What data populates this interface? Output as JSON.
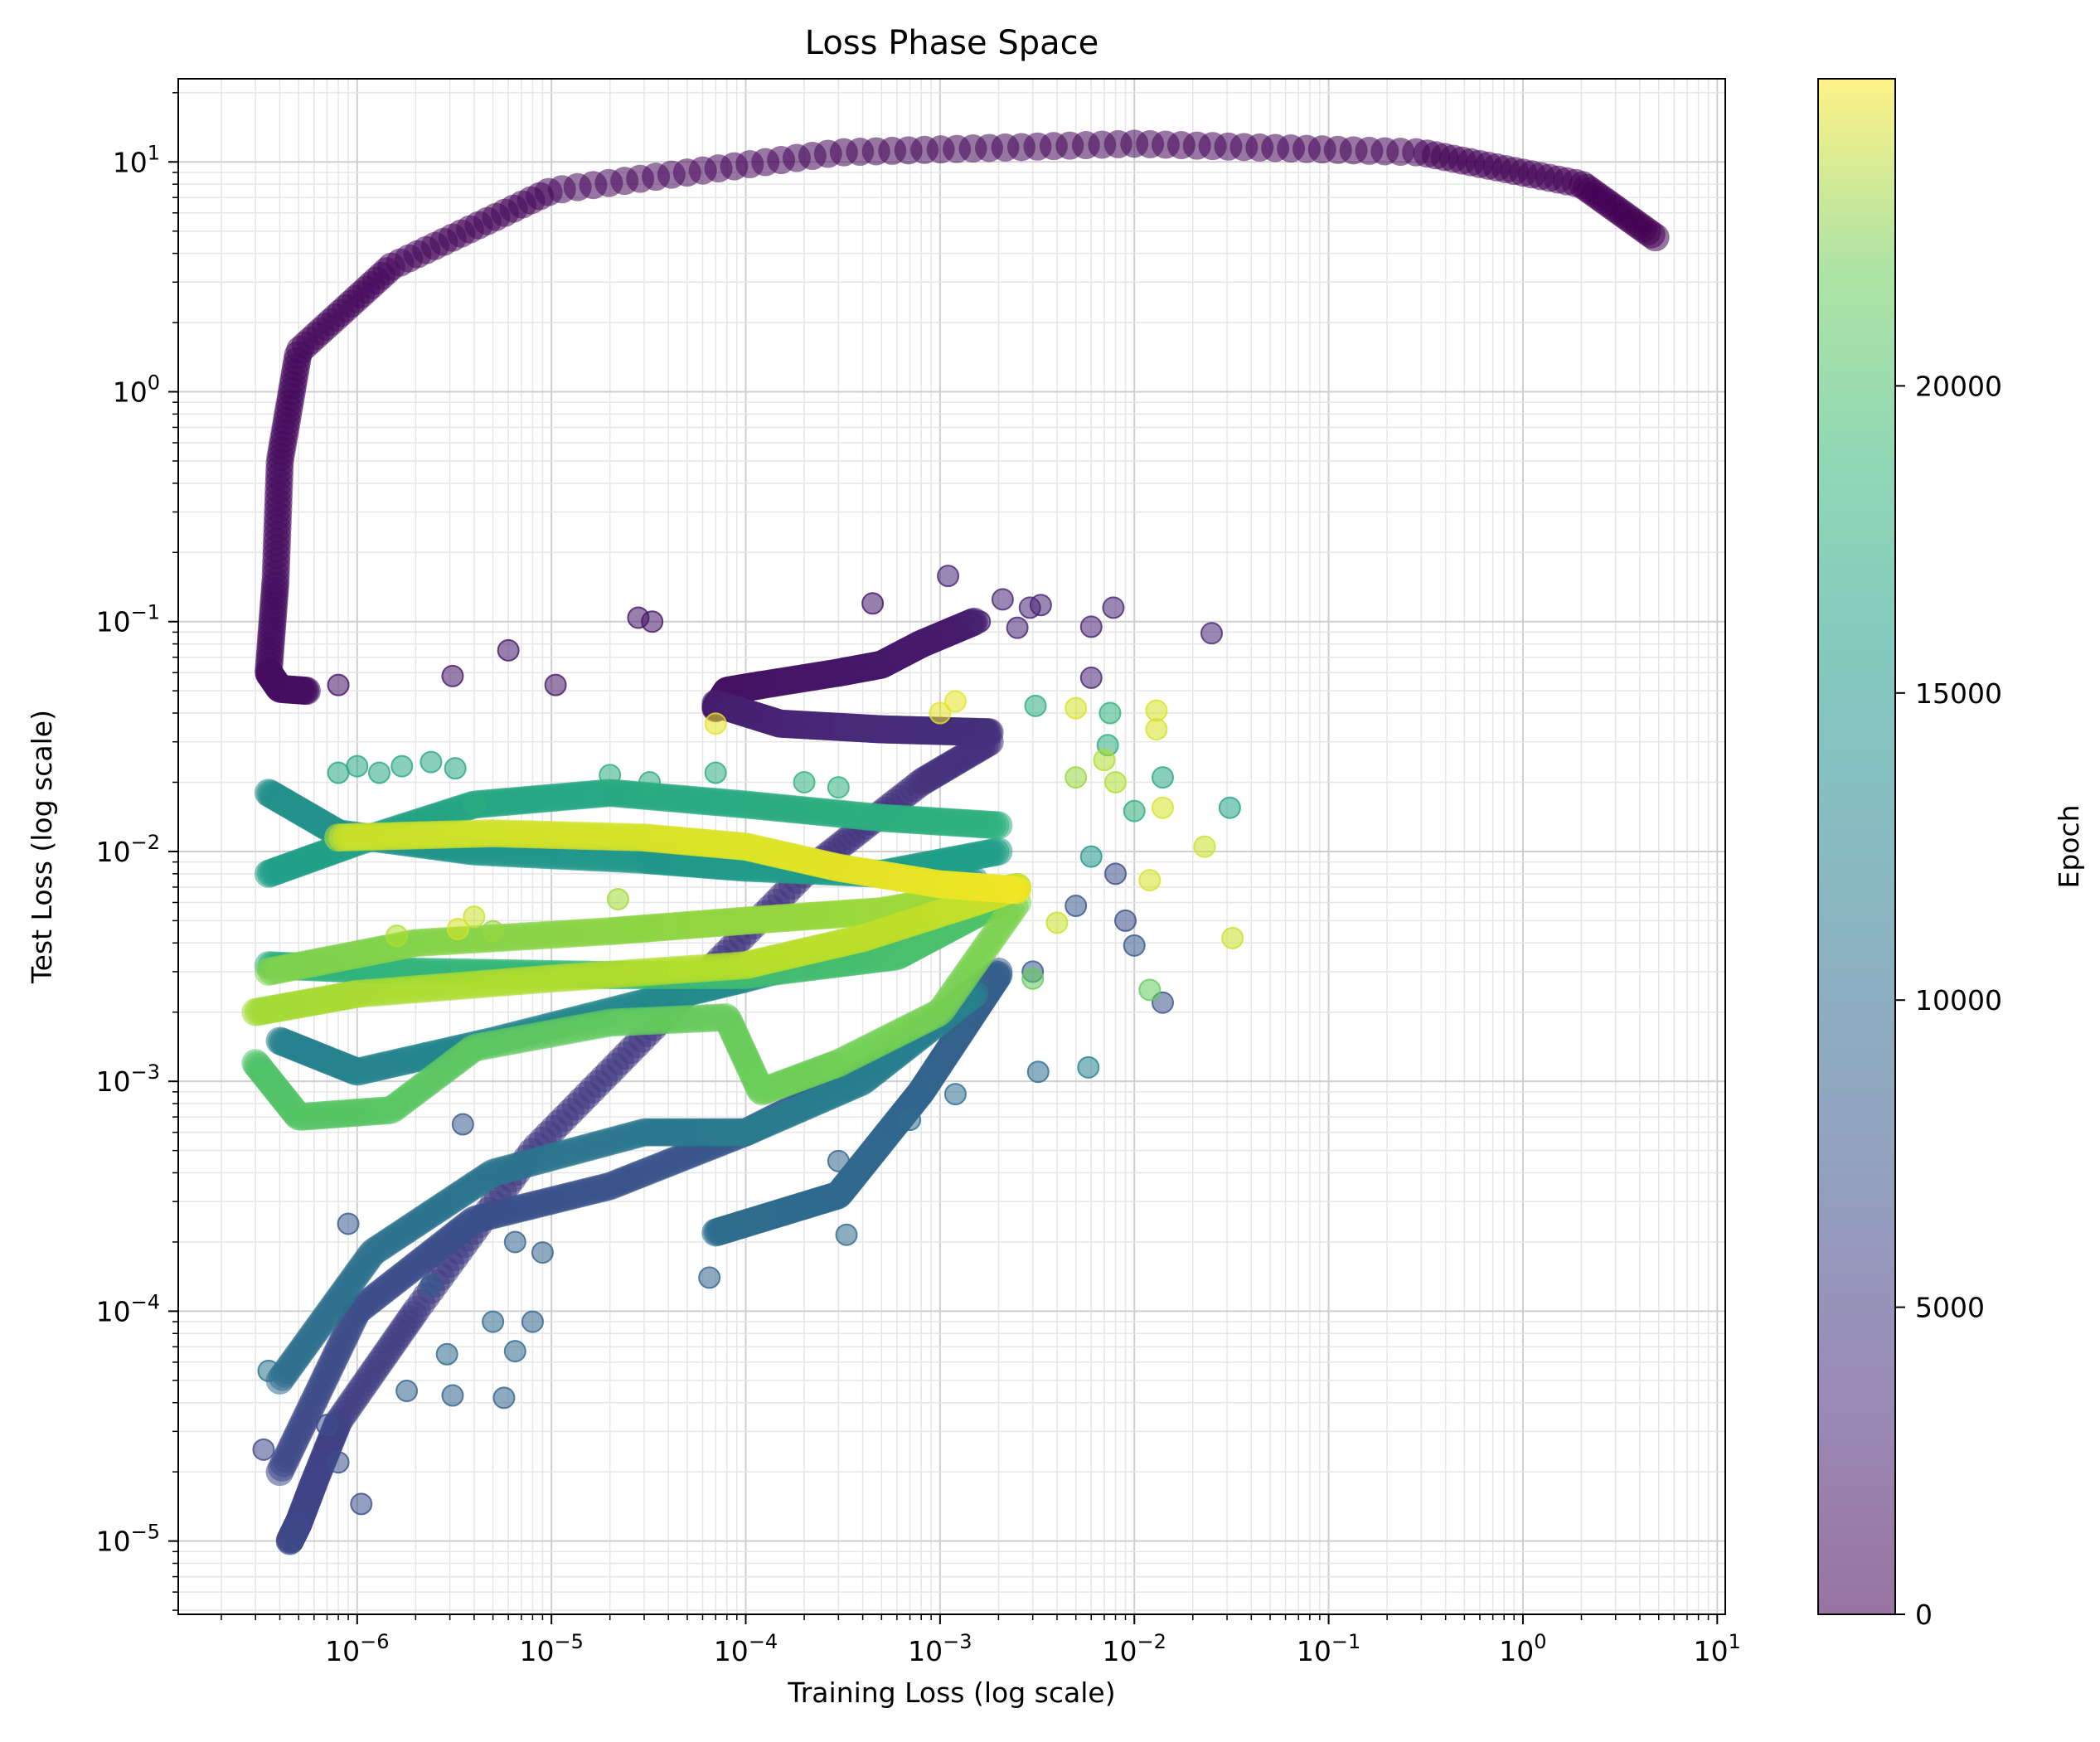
{
  "chart_data": {
    "type": "scatter",
    "title": "Loss Phase Space",
    "xlabel": "Training Loss (log scale)",
    "ylabel": "Test Loss (log scale)",
    "xscale": "log",
    "yscale": "log",
    "xlim": [
      1.2e-07,
      11
    ],
    "ylim": [
      4.8e-06,
      23
    ],
    "grid": true,
    "colormap": "viridis",
    "colorbar": {
      "label": "Epoch",
      "range": [
        0,
        25000
      ],
      "ticks": [
        0,
        5000,
        10000,
        15000,
        20000
      ]
    },
    "x_ticks": [
      "10^-6",
      "10^-5",
      "10^-4",
      "10^-3",
      "10^-2",
      "10^-1",
      "10^0",
      "10^1"
    ],
    "y_ticks": [
      "10^-5",
      "10^-4",
      "10^-3",
      "10^-2",
      "10^-1",
      "10^0",
      "10^1"
    ],
    "trajectories": [
      {
        "epoch_range": [
          0,
          1000
        ],
        "points": [
          [
            4.8,
            4.7
          ],
          [
            2.0,
            8.0
          ],
          [
            0.3,
            11.0
          ],
          [
            0.01,
            12.0
          ],
          [
            0.0003,
            11.0
          ],
          [
            1e-05,
            7.5
          ],
          [
            1.5e-06,
            3.5
          ],
          [
            5e-07,
            1.5
          ],
          [
            4e-07,
            0.5
          ],
          [
            3.8e-07,
            0.15
          ],
          [
            3.5e-07,
            0.06
          ],
          [
            4e-07,
            0.051
          ],
          [
            5.5e-07,
            0.05
          ]
        ]
      },
      {
        "epoch_range": [
          1000,
          2000
        ],
        "points": [
          [
            7e-05,
            0.042
          ],
          [
            8e-05,
            0.05
          ],
          [
            0.00012,
            0.053
          ],
          [
            0.0003,
            0.06
          ],
          [
            0.0005,
            0.065
          ],
          [
            0.0008,
            0.08
          ],
          [
            0.0015,
            0.1
          ]
        ]
      },
      {
        "epoch_range": [
          2000,
          3500
        ],
        "points": [
          [
            7e-05,
            0.044
          ],
          [
            0.00015,
            0.036
          ],
          [
            0.0005,
            0.034
          ],
          [
            0.0018,
            0.033
          ]
        ]
      },
      {
        "epoch_range": [
          3500,
          5500
        ],
        "points": [
          [
            0.0018,
            0.03
          ],
          [
            0.0008,
            0.02
          ],
          [
            0.0002,
            0.008
          ],
          [
            4e-05,
            0.002
          ],
          [
            8e-06,
            0.0005
          ],
          [
            2e-06,
            0.0001
          ],
          [
            8e-07,
            3.3e-05
          ],
          [
            6e-07,
            1.8e-05
          ],
          [
            5e-07,
            1.2e-05
          ],
          [
            4.5e-07,
            1e-05
          ]
        ]
      },
      {
        "epoch_range": [
          5500,
          7500
        ],
        "points": [
          [
            4e-07,
            2e-05
          ],
          [
            1e-06,
            0.0001
          ],
          [
            4e-06,
            0.00025
          ],
          [
            2e-05,
            0.00035
          ],
          [
            0.0001,
            0.0006
          ],
          [
            0.0005,
            0.0012
          ],
          [
            0.002,
            0.003
          ]
        ]
      },
      {
        "epoch_range": [
          7500,
          9000
        ],
        "points": [
          [
            0.002,
            0.0029
          ],
          [
            0.0008,
            0.0009
          ],
          [
            0.0003,
            0.00032
          ],
          [
            7e-05,
            0.00022
          ]
        ]
      },
      {
        "epoch_range": [
          9000,
          11000
        ],
        "points": [
          [
            4e-07,
            5e-05
          ],
          [
            1.2e-06,
            0.00018
          ],
          [
            5e-06,
            0.0004
          ],
          [
            3e-05,
            0.0006
          ],
          [
            0.0001,
            0.0006
          ],
          [
            0.0004,
            0.001
          ],
          [
            0.0015,
            0.0024
          ]
        ]
      },
      {
        "epoch_range": [
          11000,
          12500
        ],
        "points": [
          [
            4e-07,
            0.0015
          ],
          [
            1e-06,
            0.0011
          ],
          [
            5e-06,
            0.0015
          ],
          [
            3e-05,
            0.0022
          ],
          [
            0.0001,
            0.0028
          ],
          [
            0.0005,
            0.004
          ],
          [
            0.0015,
            0.0075
          ]
        ]
      },
      {
        "epoch_range": [
          12500,
          14000
        ],
        "points": [
          [
            3.5e-07,
            0.018
          ],
          [
            8e-07,
            0.012
          ],
          [
            4e-06,
            0.01
          ],
          [
            3e-05,
            0.0092
          ],
          [
            0.0001,
            0.0085
          ],
          [
            0.0005,
            0.008
          ],
          [
            0.002,
            0.01
          ]
        ]
      },
      {
        "epoch_range": [
          14000,
          16000
        ],
        "points": [
          [
            3.5e-07,
            0.008
          ],
          [
            1e-06,
            0.011
          ],
          [
            4e-06,
            0.016
          ],
          [
            2e-05,
            0.018
          ],
          [
            0.0001,
            0.016
          ],
          [
            0.0005,
            0.014
          ],
          [
            0.002,
            0.013
          ]
        ]
      },
      {
        "epoch_range": [
          16000,
          18000
        ],
        "points": [
          [
            3.5e-07,
            0.0032
          ],
          [
            2e-06,
            0.003
          ],
          [
            2e-05,
            0.0029
          ],
          [
            0.0001,
            0.0029
          ],
          [
            0.0006,
            0.0035
          ],
          [
            0.002,
            0.006
          ]
        ]
      },
      {
        "epoch_range": [
          18000,
          20000
        ],
        "points": [
          [
            3e-07,
            0.0012
          ],
          [
            5e-07,
            0.0007
          ],
          [
            1.5e-06,
            0.00075
          ],
          [
            4e-06,
            0.0014
          ],
          [
            2e-05,
            0.0018
          ],
          [
            8e-05,
            0.0019
          ],
          [
            0.00012,
            0.0009
          ],
          [
            0.0003,
            0.0012
          ],
          [
            0.001,
            0.002
          ],
          [
            0.0025,
            0.006
          ]
        ]
      },
      {
        "epoch_range": [
          20000,
          21500
        ],
        "points": [
          [
            3.5e-07,
            0.003
          ],
          [
            2e-06,
            0.004
          ],
          [
            2e-05,
            0.0045
          ],
          [
            0.0001,
            0.005
          ],
          [
            0.0005,
            0.0055
          ],
          [
            0.0025,
            0.007
          ]
        ]
      },
      {
        "epoch_range": [
          21500,
          23000
        ],
        "points": [
          [
            3e-07,
            0.002
          ],
          [
            1e-06,
            0.0024
          ],
          [
            1e-05,
            0.0028
          ],
          [
            0.0001,
            0.0032
          ],
          [
            0.0004,
            0.0042
          ],
          [
            0.0015,
            0.006
          ],
          [
            0.0025,
            0.007
          ]
        ]
      },
      {
        "epoch_range": [
          23000,
          24500
        ],
        "points": [
          [
            8e-07,
            0.0115
          ],
          [
            5e-06,
            0.012
          ],
          [
            3e-05,
            0.0115
          ],
          [
            0.0001,
            0.0105
          ],
          [
            0.0003,
            0.0085
          ],
          [
            0.001,
            0.0072
          ],
          [
            0.0025,
            0.0068
          ]
        ]
      }
    ],
    "scatter_outliers": [
      {
        "x": 3.1e-06,
        "y": 0.058,
        "epoch": 1500
      },
      {
        "x": 6e-06,
        "y": 0.075,
        "epoch": 1500
      },
      {
        "x": 1.05e-05,
        "y": 0.053,
        "epoch": 1500
      },
      {
        "x": 2.8e-05,
        "y": 0.104,
        "epoch": 1500
      },
      {
        "x": 3.3e-05,
        "y": 0.1,
        "epoch": 1500
      },
      {
        "x": 0.00045,
        "y": 0.12,
        "epoch": 1500
      },
      {
        "x": 0.0011,
        "y": 0.158,
        "epoch": 2500
      },
      {
        "x": 0.0021,
        "y": 0.125,
        "epoch": 2500
      },
      {
        "x": 0.0029,
        "y": 0.115,
        "epoch": 2500
      },
      {
        "x": 0.0033,
        "y": 0.118,
        "epoch": 2500
      },
      {
        "x": 0.0025,
        "y": 0.094,
        "epoch": 2500
      },
      {
        "x": 0.006,
        "y": 0.095,
        "epoch": 2500
      },
      {
        "x": 0.0078,
        "y": 0.115,
        "epoch": 2500
      },
      {
        "x": 0.025,
        "y": 0.089,
        "epoch": 2500
      },
      {
        "x": 0.006,
        "y": 0.057,
        "epoch": 2500
      },
      {
        "x": 0.0016,
        "y": 0.1,
        "epoch": 2500
      },
      {
        "x": 8e-07,
        "y": 0.053,
        "epoch": 1200
      },
      {
        "x": 0.0007,
        "y": 0.00068,
        "epoch": 9000
      },
      {
        "x": 0.0012,
        "y": 0.00088,
        "epoch": 9000
      },
      {
        "x": 0.0032,
        "y": 0.0011,
        "epoch": 9000
      },
      {
        "x": 0.0058,
        "y": 0.00115,
        "epoch": 11000
      },
      {
        "x": 0.014,
        "y": 0.0022,
        "epoch": 6500
      },
      {
        "x": 0.01,
        "y": 0.0039,
        "epoch": 7000
      },
      {
        "x": 0.003,
        "y": 0.003,
        "epoch": 7000
      },
      {
        "x": 0.005,
        "y": 0.0058,
        "epoch": 7000
      },
      {
        "x": 0.008,
        "y": 0.008,
        "epoch": 6000
      },
      {
        "x": 0.009,
        "y": 0.005,
        "epoch": 6000
      },
      {
        "x": 0.0003,
        "y": 0.00045,
        "epoch": 8000
      },
      {
        "x": 0.00033,
        "y": 0.000215,
        "epoch": 8500
      },
      {
        "x": 6.5e-05,
        "y": 0.00014,
        "epoch": 8000
      },
      {
        "x": 3.5e-06,
        "y": 0.00065,
        "epoch": 7000
      },
      {
        "x": 6.5e-06,
        "y": 0.0002,
        "epoch": 8000
      },
      {
        "x": 9e-06,
        "y": 0.00018,
        "epoch": 8000
      },
      {
        "x": 5e-06,
        "y": 9e-05,
        "epoch": 8500
      },
      {
        "x": 8e-06,
        "y": 9e-05,
        "epoch": 8000
      },
      {
        "x": 2.9e-06,
        "y": 6.5e-05,
        "epoch": 8500
      },
      {
        "x": 6.5e-06,
        "y": 6.7e-05,
        "epoch": 8500
      },
      {
        "x": 1.8e-06,
        "y": 4.5e-05,
        "epoch": 8000
      },
      {
        "x": 3.1e-06,
        "y": 4.3e-05,
        "epoch": 8000
      },
      {
        "x": 5.7e-06,
        "y": 4.2e-05,
        "epoch": 8000
      },
      {
        "x": 1.05e-06,
        "y": 1.45e-05,
        "epoch": 6000
      },
      {
        "x": 8e-07,
        "y": 2.2e-05,
        "epoch": 6000
      },
      {
        "x": 7e-07,
        "y": 3.2e-05,
        "epoch": 6000
      },
      {
        "x": 0.0031,
        "y": 0.043,
        "epoch": 15500
      },
      {
        "x": 0.0075,
        "y": 0.04,
        "epoch": 16000
      },
      {
        "x": 0.0073,
        "y": 0.029,
        "epoch": 15500
      },
      {
        "x": 0.014,
        "y": 0.021,
        "epoch": 15000
      },
      {
        "x": 0.031,
        "y": 0.0155,
        "epoch": 14500
      },
      {
        "x": 0.01,
        "y": 0.015,
        "epoch": 15500
      },
      {
        "x": 0.006,
        "y": 0.0095,
        "epoch": 13000
      },
      {
        "x": 0.012,
        "y": 0.0025,
        "epoch": 19000
      },
      {
        "x": 0.003,
        "y": 0.0028,
        "epoch": 19000
      },
      {
        "x": 0.005,
        "y": 0.021,
        "epoch": 21000
      },
      {
        "x": 0.007,
        "y": 0.025,
        "epoch": 22000
      },
      {
        "x": 0.008,
        "y": 0.02,
        "epoch": 22000
      },
      {
        "x": 0.005,
        "y": 0.042,
        "epoch": 23500
      },
      {
        "x": 0.013,
        "y": 0.041,
        "epoch": 23500
      },
      {
        "x": 0.013,
        "y": 0.034,
        "epoch": 23500
      },
      {
        "x": 0.014,
        "y": 0.0155,
        "epoch": 23500
      },
      {
        "x": 0.012,
        "y": 0.0075,
        "epoch": 23500
      },
      {
        "x": 0.023,
        "y": 0.0105,
        "epoch": 23000
      },
      {
        "x": 0.032,
        "y": 0.0042,
        "epoch": 23000
      },
      {
        "x": 0.004,
        "y": 0.0049,
        "epoch": 23000
      },
      {
        "x": 3.3e-06,
        "y": 0.0046,
        "epoch": 23500
      },
      {
        "x": 4e-06,
        "y": 0.0052,
        "epoch": 23000
      },
      {
        "x": 7e-05,
        "y": 0.036,
        "epoch": 24000
      },
      {
        "x": 0.001,
        "y": 0.04,
        "epoch": 24000
      },
      {
        "x": 0.0012,
        "y": 0.045,
        "epoch": 24000
      },
      {
        "x": 4e-06,
        "y": 0.016,
        "epoch": 15500
      },
      {
        "x": 1.3e-06,
        "y": 0.022,
        "epoch": 15000
      },
      {
        "x": 8e-07,
        "y": 0.022,
        "epoch": 15000
      },
      {
        "x": 1e-06,
        "y": 0.0235,
        "epoch": 15000
      },
      {
        "x": 1.7e-06,
        "y": 0.0235,
        "epoch": 15000
      },
      {
        "x": 2.4e-06,
        "y": 0.0245,
        "epoch": 15000
      },
      {
        "x": 3.2e-06,
        "y": 0.023,
        "epoch": 15000
      },
      {
        "x": 2e-05,
        "y": 0.0215,
        "epoch": 15500
      },
      {
        "x": 3.2e-05,
        "y": 0.02,
        "epoch": 15500
      },
      {
        "x": 7e-05,
        "y": 0.022,
        "epoch": 15500
      },
      {
        "x": 0.0002,
        "y": 0.02,
        "epoch": 16000
      },
      {
        "x": 0.0003,
        "y": 0.019,
        "epoch": 16000
      },
      {
        "x": 5e-06,
        "y": 0.0045,
        "epoch": 21000
      },
      {
        "x": 2.2e-05,
        "y": 0.0062,
        "epoch": 21500
      },
      {
        "x": 1.6e-06,
        "y": 0.0043,
        "epoch": 22000
      },
      {
        "x": 3.5e-07,
        "y": 5.5e-05,
        "epoch": 9500
      },
      {
        "x": 3.3e-07,
        "y": 2.5e-05,
        "epoch": 5500
      },
      {
        "x": 2.4e-06,
        "y": 0.00013,
        "epoch": 7500
      },
      {
        "x": 9e-07,
        "y": 0.00024,
        "epoch": 7000
      }
    ]
  }
}
